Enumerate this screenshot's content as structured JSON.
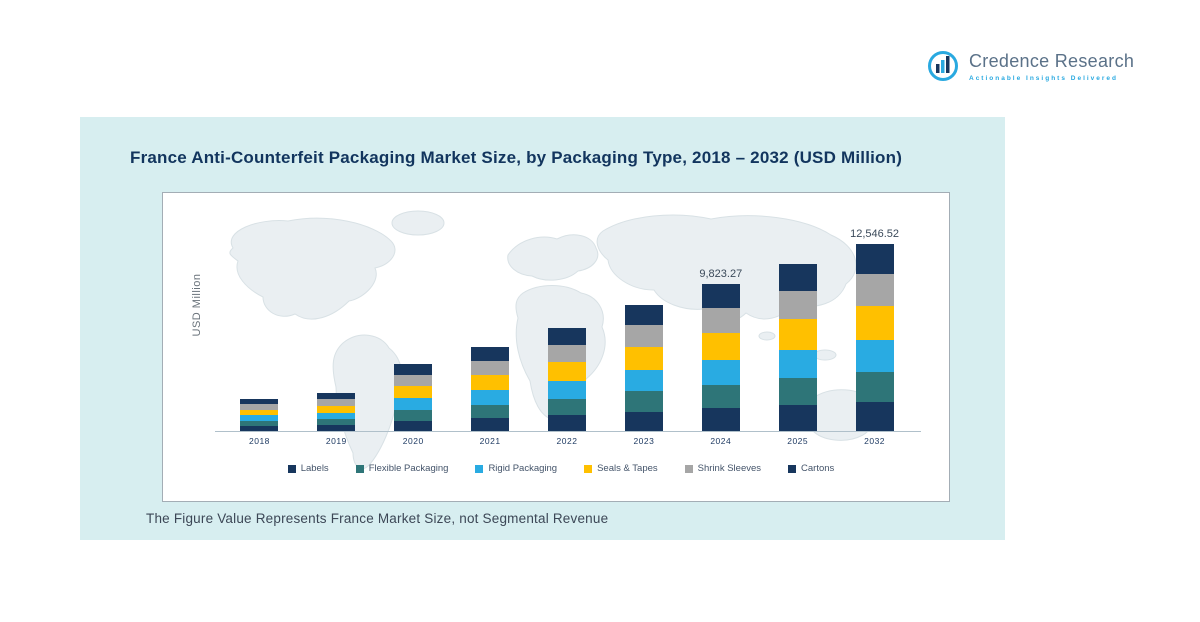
{
  "brand": {
    "name": "Credence Research",
    "tagline": "Actionable Insights Delivered",
    "accent_color": "#29a9e0"
  },
  "title": "France Anti-Counterfeit Packaging Market Size, by Packaging Type, 2018 – 2032 (USD Million)",
  "footnote": "The Figure Value Represents France Market Size, not Segmental Revenue",
  "panel_color": "#d7eef0",
  "chart_data": {
    "type": "bar",
    "stacked": true,
    "title": "France Anti-Counterfeit Packaging Market Size, by Packaging Type, 2018 – 2032 (USD Million)",
    "xlabel": "",
    "ylabel": "USD Million",
    "ylim": [
      0,
      14000
    ],
    "grid": false,
    "legend_position": "bottom",
    "categories": [
      "2018",
      "2019",
      "2020",
      "2021",
      "2022",
      "2023",
      "2024",
      "2025",
      "2032"
    ],
    "series": [
      {
        "name": "Labels",
        "color": "#17365d",
        "values": [
          333,
          395,
          698,
          868,
          1066,
          1306,
          1522.61,
          1734,
          1944.71
        ]
      },
      {
        "name": "Flexible Packaging",
        "color": "#2e7578",
        "values": [
          344,
          408,
          720,
          896,
          1100,
          1348,
          1571.72,
          1790,
          2007.44
        ]
      },
      {
        "name": "Rigid Packaging",
        "color": "#29abe2",
        "values": [
          366,
          434,
          765,
          952,
          1169,
          1432,
          1669.96,
          1902,
          2132.91
        ]
      },
      {
        "name": "Seals & Tapes",
        "color": "#ffc000",
        "values": [
          398,
          472,
          833,
          1036,
          1272,
          1559,
          1817.3,
          2070,
          2321.1
        ]
      },
      {
        "name": "Shrink Sleeves",
        "color": "#a6a6a6",
        "values": [
          366,
          434,
          765,
          952,
          1169,
          1432,
          1669.96,
          1902,
          2132.91
        ]
      },
      {
        "name": "Cartons",
        "color": "#17365d",
        "values": [
          344,
          408,
          720,
          896,
          1100,
          1348,
          1571.72,
          1790,
          2007.44
        ]
      }
    ],
    "totals_estimated": [
      2151,
      2551,
      4501,
      5600,
      6876,
      8425,
      9823.27,
      11188,
      12546.52
    ],
    "value_labels": {
      "2024": "9,823.27",
      "2032": "12,546.52"
    }
  }
}
